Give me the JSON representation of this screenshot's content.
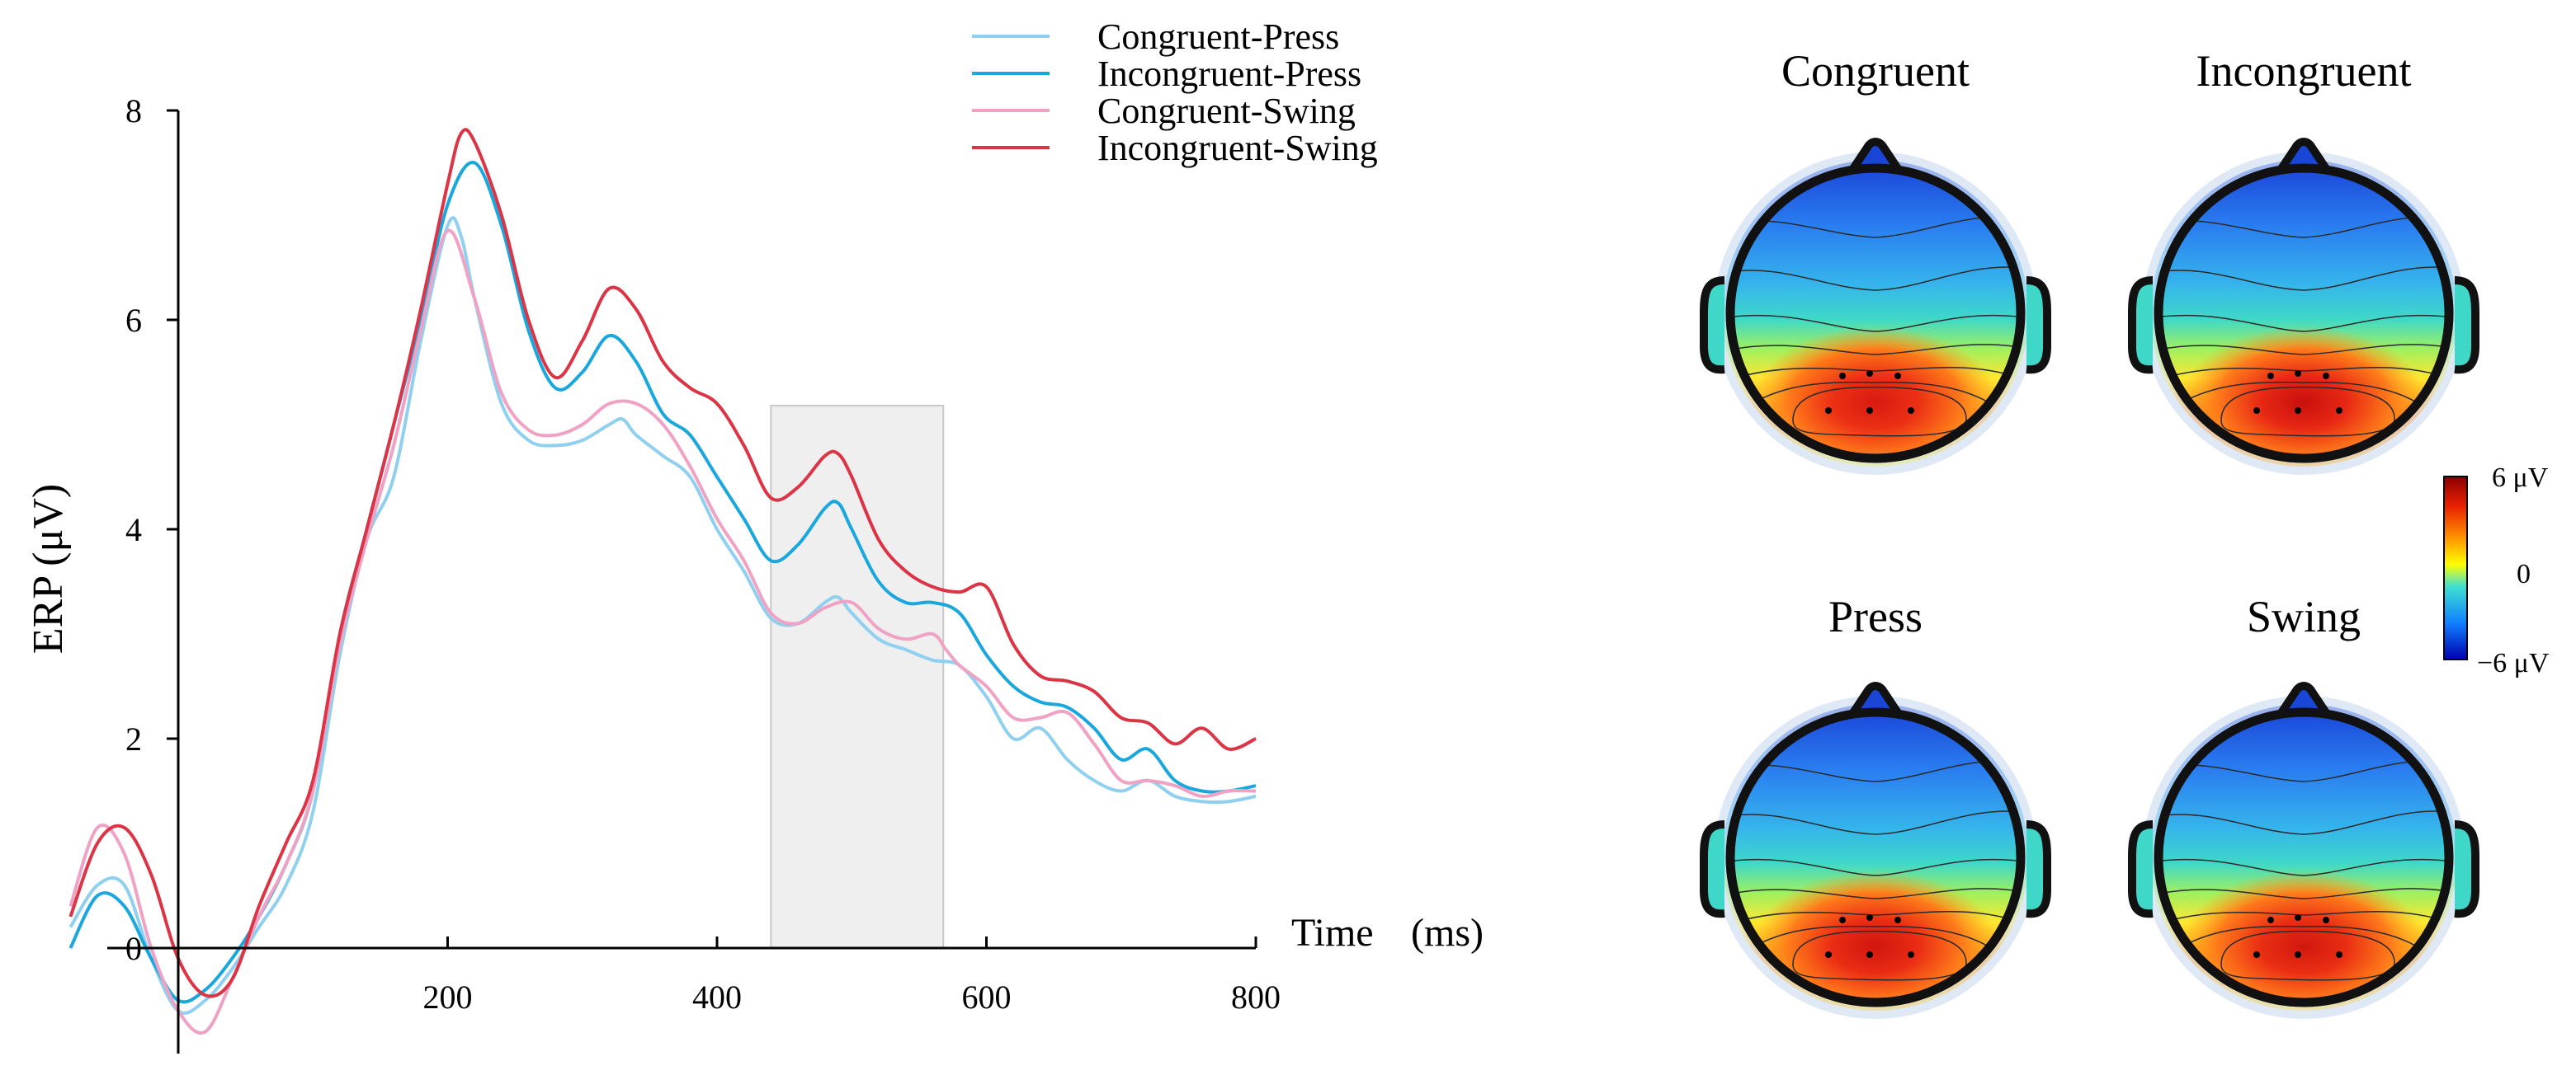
{
  "chart_data": {
    "type": "line",
    "title": "",
    "xlabel": "Time",
    "xunit": "(ms)",
    "ylabel": "ERP (μV)",
    "xlim": [
      -80,
      800
    ],
    "ylim": [
      -1,
      8
    ],
    "x_ticks": [
      "200",
      "400",
      "600",
      "800"
    ],
    "y_ticks": [
      "0",
      "2",
      "4",
      "6",
      "8"
    ],
    "highlight_window": [
      440,
      568
    ],
    "legend": [
      "Congruent-Press",
      "Incongruent-Press",
      "Congruent-Swing",
      "Incongruent-Swing"
    ],
    "series": [
      {
        "name": "Congruent-Press",
        "color": "#8fd0f0",
        "points": [
          [
            -80,
            0.2
          ],
          [
            -60,
            0.6
          ],
          [
            -40,
            0.6
          ],
          [
            -20,
            -0.1
          ],
          [
            0,
            -0.6
          ],
          [
            20,
            -0.5
          ],
          [
            40,
            -0.2
          ],
          [
            60,
            0.2
          ],
          [
            80,
            0.6
          ],
          [
            100,
            1.3
          ],
          [
            120,
            2.8
          ],
          [
            140,
            3.9
          ],
          [
            160,
            4.5
          ],
          [
            180,
            5.8
          ],
          [
            200,
            6.9
          ],
          [
            210,
            6.8
          ],
          [
            220,
            6.2
          ],
          [
            240,
            5.2
          ],
          [
            260,
            4.85
          ],
          [
            280,
            4.8
          ],
          [
            300,
            4.85
          ],
          [
            320,
            5.0
          ],
          [
            330,
            5.05
          ],
          [
            340,
            4.9
          ],
          [
            360,
            4.7
          ],
          [
            380,
            4.5
          ],
          [
            400,
            4.0
          ],
          [
            420,
            3.6
          ],
          [
            440,
            3.15
          ],
          [
            460,
            3.1
          ],
          [
            480,
            3.3
          ],
          [
            490,
            3.35
          ],
          [
            500,
            3.2
          ],
          [
            520,
            2.95
          ],
          [
            540,
            2.85
          ],
          [
            560,
            2.75
          ],
          [
            580,
            2.7
          ],
          [
            600,
            2.4
          ],
          [
            620,
            2.0
          ],
          [
            640,
            2.1
          ],
          [
            660,
            1.8
          ],
          [
            680,
            1.6
          ],
          [
            700,
            1.5
          ],
          [
            720,
            1.6
          ],
          [
            740,
            1.45
          ],
          [
            760,
            1.4
          ],
          [
            780,
            1.4
          ],
          [
            800,
            1.45
          ]
        ]
      },
      {
        "name": "Incongruent-Press",
        "color": "#1aa7dd",
        "points": [
          [
            -80,
            0.0
          ],
          [
            -60,
            0.5
          ],
          [
            -40,
            0.4
          ],
          [
            -20,
            -0.1
          ],
          [
            0,
            -0.5
          ],
          [
            20,
            -0.4
          ],
          [
            40,
            -0.1
          ],
          [
            60,
            0.3
          ],
          [
            80,
            0.8
          ],
          [
            100,
            1.5
          ],
          [
            120,
            3.0
          ],
          [
            140,
            4.0
          ],
          [
            160,
            5.0
          ],
          [
            180,
            6.0
          ],
          [
            200,
            7.1
          ],
          [
            220,
            7.5
          ],
          [
            240,
            6.9
          ],
          [
            260,
            5.9
          ],
          [
            280,
            5.35
          ],
          [
            300,
            5.5
          ],
          [
            320,
            5.85
          ],
          [
            340,
            5.6
          ],
          [
            360,
            5.1
          ],
          [
            380,
            4.9
          ],
          [
            400,
            4.5
          ],
          [
            420,
            4.1
          ],
          [
            440,
            3.7
          ],
          [
            460,
            3.85
          ],
          [
            480,
            4.2
          ],
          [
            490,
            4.25
          ],
          [
            500,
            4.0
          ],
          [
            520,
            3.5
          ],
          [
            540,
            3.3
          ],
          [
            560,
            3.3
          ],
          [
            580,
            3.2
          ],
          [
            600,
            2.8
          ],
          [
            620,
            2.5
          ],
          [
            640,
            2.35
          ],
          [
            660,
            2.3
          ],
          [
            680,
            2.1
          ],
          [
            700,
            1.8
          ],
          [
            720,
            1.9
          ],
          [
            740,
            1.6
          ],
          [
            760,
            1.5
          ],
          [
            780,
            1.5
          ],
          [
            800,
            1.55
          ]
        ]
      },
      {
        "name": "Congruent-Swing",
        "color": "#f0a2c4",
        "points": [
          [
            -80,
            0.4
          ],
          [
            -60,
            1.15
          ],
          [
            -40,
            0.9
          ],
          [
            -20,
            0.0
          ],
          [
            0,
            -0.6
          ],
          [
            20,
            -0.8
          ],
          [
            40,
            -0.3
          ],
          [
            60,
            0.3
          ],
          [
            80,
            0.8
          ],
          [
            100,
            1.5
          ],
          [
            120,
            2.9
          ],
          [
            140,
            3.9
          ],
          [
            160,
            4.8
          ],
          [
            180,
            5.9
          ],
          [
            200,
            6.85
          ],
          [
            220,
            6.2
          ],
          [
            240,
            5.3
          ],
          [
            260,
            4.95
          ],
          [
            280,
            4.9
          ],
          [
            300,
            5.0
          ],
          [
            320,
            5.2
          ],
          [
            340,
            5.2
          ],
          [
            360,
            5.0
          ],
          [
            380,
            4.6
          ],
          [
            400,
            4.1
          ],
          [
            420,
            3.7
          ],
          [
            440,
            3.2
          ],
          [
            460,
            3.1
          ],
          [
            480,
            3.25
          ],
          [
            500,
            3.3
          ],
          [
            520,
            3.05
          ],
          [
            540,
            2.95
          ],
          [
            560,
            3.0
          ],
          [
            570,
            2.85
          ],
          [
            580,
            2.7
          ],
          [
            600,
            2.5
          ],
          [
            620,
            2.2
          ],
          [
            640,
            2.2
          ],
          [
            660,
            2.25
          ],
          [
            680,
            1.95
          ],
          [
            700,
            1.6
          ],
          [
            720,
            1.6
          ],
          [
            740,
            1.55
          ],
          [
            760,
            1.45
          ],
          [
            780,
            1.5
          ],
          [
            800,
            1.5
          ]
        ]
      },
      {
        "name": "Incongruent-Swing",
        "color": "#dc3345",
        "points": [
          [
            -80,
            0.3
          ],
          [
            -60,
            1.0
          ],
          [
            -40,
            1.15
          ],
          [
            -20,
            0.7
          ],
          [
            0,
            -0.1
          ],
          [
            20,
            -0.45
          ],
          [
            40,
            -0.3
          ],
          [
            60,
            0.4
          ],
          [
            80,
            1.0
          ],
          [
            100,
            1.6
          ],
          [
            120,
            3.0
          ],
          [
            140,
            4.0
          ],
          [
            160,
            5.0
          ],
          [
            180,
            6.1
          ],
          [
            200,
            7.3
          ],
          [
            210,
            7.78
          ],
          [
            220,
            7.7
          ],
          [
            240,
            7.0
          ],
          [
            260,
            6.0
          ],
          [
            280,
            5.45
          ],
          [
            300,
            5.8
          ],
          [
            320,
            6.3
          ],
          [
            340,
            6.1
          ],
          [
            360,
            5.6
          ],
          [
            380,
            5.35
          ],
          [
            400,
            5.2
          ],
          [
            420,
            4.8
          ],
          [
            440,
            4.3
          ],
          [
            460,
            4.4
          ],
          [
            480,
            4.7
          ],
          [
            490,
            4.72
          ],
          [
            500,
            4.5
          ],
          [
            520,
            3.9
          ],
          [
            540,
            3.6
          ],
          [
            560,
            3.45
          ],
          [
            580,
            3.4
          ],
          [
            600,
            3.45
          ],
          [
            620,
            2.9
          ],
          [
            640,
            2.6
          ],
          [
            660,
            2.55
          ],
          [
            680,
            2.45
          ],
          [
            700,
            2.2
          ],
          [
            720,
            2.15
          ],
          [
            740,
            1.95
          ],
          [
            760,
            2.1
          ],
          [
            780,
            1.9
          ],
          [
            800,
            2.0
          ]
        ]
      }
    ]
  },
  "topomaps": [
    {
      "label": "Congruent",
      "colors": {
        "edge": "#f0f050",
        "outer": "#ffa020",
        "peak": "#ec3015",
        "core": "#d81a10"
      }
    },
    {
      "label": "Incongruent",
      "colors": {
        "edge": "#ffb020",
        "outer": "#ff8818",
        "peak": "#e82814",
        "core": "#c8100c"
      }
    },
    {
      "label": "Press",
      "colors": {
        "edge": "#ffd020",
        "outer": "#ff9818",
        "peak": "#ea2c14",
        "core": "#d0160e"
      }
    },
    {
      "label": "Swing",
      "colors": {
        "edge": "#ffd828",
        "outer": "#ff9a18",
        "peak": "#ea2e14",
        "core": "#d0180e"
      }
    }
  ],
  "colorbar": {
    "max_label": "6 μV",
    "mid_label": "0",
    "min_label": "−6 μV",
    "stops": [
      "#8a0000",
      "#e82000",
      "#ff9000",
      "#ffff00",
      "#40e0d0",
      "#1080ff",
      "#0000b0"
    ]
  }
}
